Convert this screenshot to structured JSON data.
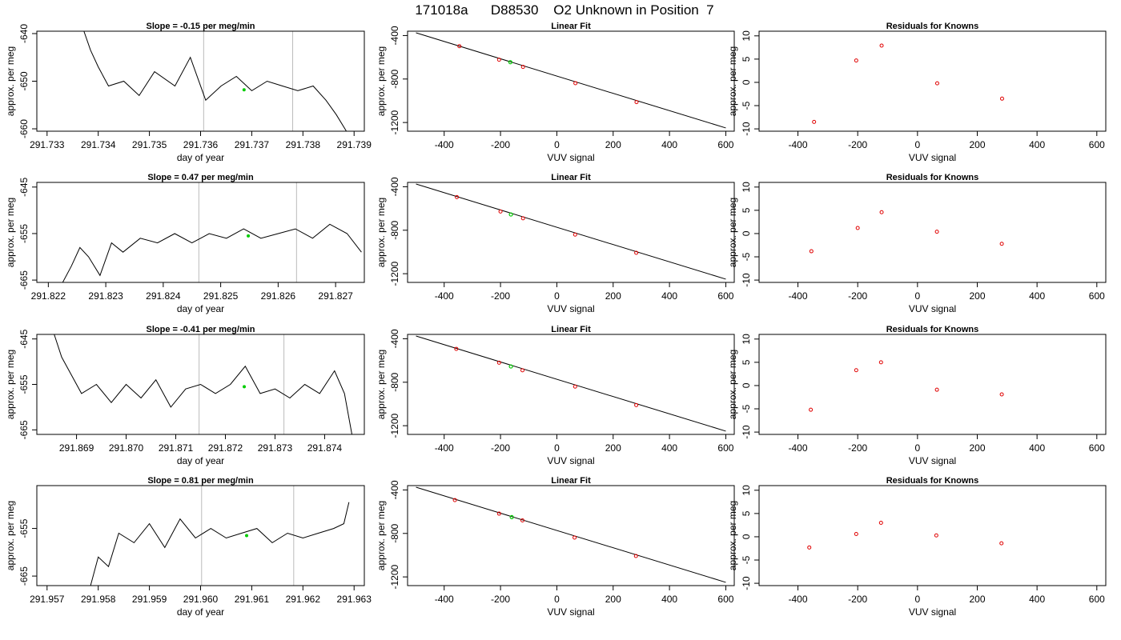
{
  "title": "171018a      D88530    O2 Unknown in Position  7",
  "colors": {
    "trace": "#000000",
    "marker": "#00cc00",
    "residual": "#e00000",
    "vline": "#bbbbbb",
    "fit": "#000000"
  },
  "rows": [
    {
      "ts_title": "Slope =  -0.15  per meg/min",
      "ts_xticks": [
        "291.733",
        "291.734",
        "291.735",
        "291.736",
        "291.737",
        "291.738",
        "291.739"
      ],
      "ts_yticks": [
        "-640",
        "-650",
        "-660"
      ],
      "ts_xlabel": "day of year",
      "ts_ylabel": "approx. per meg",
      "fit_title": "Linear Fit",
      "fit_xlabel": "VUV signal",
      "fit_ylabel": "approx. per meg",
      "res_title": "Residuals for Knowns",
      "res_xlabel": "VUV signal",
      "res_ylabel": "approx. per meg"
    },
    {
      "ts_title": "Slope =  0.47  per meg/min",
      "ts_xticks": [
        "291.822",
        "291.823",
        "291.824",
        "291.825",
        "291.826",
        "291.827"
      ],
      "ts_yticks": [
        "-645",
        "-655",
        "-665"
      ],
      "ts_xlabel": "day of year",
      "ts_ylabel": "approx. per meg",
      "fit_title": "Linear Fit",
      "fit_xlabel": "VUV signal",
      "fit_ylabel": "approx. per meg",
      "res_title": "Residuals for Knowns",
      "res_xlabel": "VUV signal",
      "res_ylabel": "approx. per meg"
    },
    {
      "ts_title": "Slope =  -0.41  per meg/min",
      "ts_xticks": [
        "291.869",
        "291.870",
        "291.871",
        "291.872",
        "291.873",
        "291.874"
      ],
      "ts_yticks": [
        "-645",
        "-655",
        "-665"
      ],
      "ts_xlabel": "day of year",
      "ts_ylabel": "approx. per meg",
      "fit_title": "Linear Fit",
      "fit_xlabel": "VUV signal",
      "fit_ylabel": "approx. per meg",
      "res_title": "Residuals for Knowns",
      "res_xlabel": "VUV signal",
      "res_ylabel": "approx. per meg"
    },
    {
      "ts_title": "Slope =  0.81  per meg/min",
      "ts_xticks": [
        "291.957",
        "291.958",
        "291.959",
        "291.960",
        "291.961",
        "291.962",
        "291.963"
      ],
      "ts_yticks": [
        "-655",
        "-665"
      ],
      "ts_xlabel": "day of year",
      "ts_ylabel": "approx. per meg",
      "fit_title": "Linear Fit",
      "fit_xlabel": "VUV signal",
      "fit_ylabel": "approx. per meg",
      "res_title": "Residuals for Knowns",
      "res_xlabel": "VUV signal",
      "res_ylabel": "approx. per meg"
    }
  ],
  "chart_data": [
    {
      "panel": "row1-timeseries",
      "type": "line",
      "title": "Slope =  -0.15  per meg/min",
      "xlabel": "day of year",
      "ylabel": "approx. per meg",
      "xlim": [
        291.7328,
        291.7392
      ],
      "ylim": [
        -660.5,
        -639.5
      ],
      "xticks": [
        291.733,
        291.734,
        291.735,
        291.736,
        291.737,
        291.738,
        291.739
      ],
      "yticks": [
        -640,
        -650,
        -660
      ],
      "vlines": [
        291.73606,
        291.7378
      ],
      "marker": {
        "x": 291.73685,
        "y": -651.8
      },
      "x": [
        291.73372,
        291.73385,
        291.734,
        291.7342,
        291.7345,
        291.7348,
        291.7351,
        291.7355,
        291.7358,
        291.7361,
        291.7364,
        291.7367,
        291.737,
        291.7373,
        291.7376,
        291.7379,
        291.7382,
        291.73845,
        291.73865,
        291.73885
      ],
      "y": [
        -639.5,
        -643.5,
        -647,
        -651,
        -650,
        -653,
        -648,
        -651,
        -645,
        -654,
        -651,
        -649,
        -652,
        -650,
        -651,
        -652,
        -651,
        -654,
        -657,
        -660.5
      ]
    },
    {
      "panel": "row1-linearfit",
      "type": "scatter",
      "title": "Linear Fit",
      "xlabel": "VUV signal",
      "ylabel": "approx. per meg",
      "xlim": [
        -530,
        630
      ],
      "ylim": [
        -1280,
        -360
      ],
      "xticks": [
        -400,
        -200,
        0,
        200,
        400,
        600
      ],
      "yticks": [
        -400,
        -800,
        -1200
      ],
      "x": [
        -346,
        -205,
        -120,
        66,
        283
      ],
      "y": [
        -498,
        -622,
        -688,
        -838,
        -1012
      ],
      "fit_line": {
        "x": [
          -500,
          600
        ],
        "y": [
          -375,
          -1250
        ]
      },
      "marker": {
        "x": -165,
        "y": -645
      }
    },
    {
      "panel": "row1-residuals",
      "type": "scatter",
      "title": "Residuals for Knowns",
      "xlabel": "VUV signal",
      "ylabel": "approx. per meg",
      "xlim": [
        -530,
        630
      ],
      "ylim": [
        -10.5,
        11
      ],
      "xticks": [
        -400,
        -200,
        0,
        200,
        400,
        600
      ],
      "yticks": [
        10,
        5,
        0,
        -5,
        -10
      ],
      "x": [
        -346,
        -205,
        -120,
        66,
        283
      ],
      "y": [
        -8.5,
        4.7,
        7.9,
        -0.2,
        -3.5
      ]
    },
    {
      "panel": "row2-timeseries",
      "type": "line",
      "title": "Slope =  0.47  per meg/min",
      "xlabel": "day of year",
      "ylabel": "approx. per meg",
      "xlim": [
        291.8218,
        291.8275
      ],
      "ylim": [
        -665.5,
        -644
      ],
      "xticks": [
        291.822,
        291.823,
        291.824,
        291.825,
        291.826,
        291.827
      ],
      "yticks": [
        -645,
        -655,
        -665
      ],
      "vlines": [
        291.82462,
        291.82632
      ],
      "marker": {
        "x": 291.82548,
        "y": -655.5
      },
      "x": [
        291.82225,
        291.8224,
        291.82255,
        291.8227,
        291.8229,
        291.8231,
        291.8233,
        291.8236,
        291.8239,
        291.8242,
        291.8245,
        291.8248,
        291.8251,
        291.8254,
        291.8257,
        291.826,
        291.8263,
        291.8266,
        291.8269,
        291.8272,
        291.82745
      ],
      "y": [
        -665.5,
        -662,
        -658,
        -660,
        -664,
        -657,
        -659,
        -656,
        -657,
        -655,
        -657,
        -655,
        -656,
        -654,
        -656,
        -655,
        -654,
        -656,
        -653,
        -655,
        -659
      ]
    },
    {
      "panel": "row2-linearfit",
      "type": "scatter",
      "title": "Linear Fit",
      "xlabel": "VUV signal",
      "ylabel": "approx. per meg",
      "xlim": [
        -530,
        630
      ],
      "ylim": [
        -1280,
        -360
      ],
      "xticks": [
        -400,
        -200,
        0,
        200,
        400,
        600
      ],
      "yticks": [
        -400,
        -800,
        -1200
      ],
      "x": [
        -355,
        -200,
        -120,
        65,
        282
      ],
      "y": [
        -495,
        -628,
        -690,
        -840,
        -1008
      ],
      "fit_line": {
        "x": [
          -500,
          600
        ],
        "y": [
          -375,
          -1250
        ]
      },
      "marker": {
        "x": -163,
        "y": -655
      }
    },
    {
      "panel": "row2-residuals",
      "type": "scatter",
      "title": "Residuals for Knowns",
      "xlabel": "VUV signal",
      "ylabel": "approx. per meg",
      "xlim": [
        -530,
        630
      ],
      "ylim": [
        -10.5,
        11
      ],
      "xticks": [
        -400,
        -200,
        0,
        200,
        400,
        600
      ],
      "yticks": [
        10,
        5,
        0,
        -5,
        -10
      ],
      "x": [
        -355,
        -200,
        -120,
        65,
        282
      ],
      "y": [
        -3.8,
        1.2,
        4.6,
        0.4,
        -2.2
      ]
    },
    {
      "panel": "row3-timeseries",
      "type": "line",
      "title": "Slope =  -0.41  per meg/min",
      "xlabel": "day of year",
      "ylabel": "approx. per meg",
      "xlim": [
        291.8682,
        291.8748
      ],
      "ylim": [
        -666,
        -644
      ],
      "xticks": [
        291.869,
        291.87,
        291.871,
        291.872,
        291.873,
        291.874
      ],
      "yticks": [
        -645,
        -655,
        -665
      ],
      "vlines": [
        291.87147,
        291.87318
      ],
      "marker": {
        "x": 291.87238,
        "y": -655.5
      },
      "x": [
        291.86855,
        291.8687,
        291.8689,
        291.8691,
        291.8694,
        291.8697,
        291.87,
        291.8703,
        291.8706,
        291.8709,
        291.8712,
        291.8715,
        291.8718,
        291.8721,
        291.8724,
        291.8727,
        291.873,
        291.8733,
        291.8736,
        291.8739,
        291.8742,
        291.8744,
        291.87455
      ],
      "y": [
        -644,
        -649,
        -653,
        -657,
        -655,
        -659,
        -655,
        -658,
        -654,
        -660,
        -656,
        -655,
        -657,
        -655,
        -651,
        -657,
        -656,
        -658,
        -655,
        -657,
        -652,
        -657,
        -666
      ]
    },
    {
      "panel": "row3-linearfit",
      "type": "scatter",
      "title": "Linear Fit",
      "xlabel": "VUV signal",
      "ylabel": "approx. per meg",
      "xlim": [
        -530,
        630
      ],
      "ylim": [
        -1280,
        -360
      ],
      "xticks": [
        -400,
        -200,
        0,
        200,
        400,
        600
      ],
      "yticks": [
        -400,
        -800,
        -1200
      ],
      "x": [
        -357,
        -205,
        -122,
        65,
        282
      ],
      "y": [
        -493,
        -620,
        -690,
        -840,
        -1010
      ],
      "fit_line": {
        "x": [
          -500,
          600
        ],
        "y": [
          -375,
          -1250
        ]
      },
      "marker": {
        "x": -163,
        "y": -655
      }
    },
    {
      "panel": "row3-residuals",
      "type": "scatter",
      "title": "Residuals for Knowns",
      "xlabel": "VUV signal",
      "ylabel": "approx. per meg",
      "xlim": [
        -530,
        630
      ],
      "ylim": [
        -10.5,
        11
      ],
      "xticks": [
        -400,
        -200,
        0,
        200,
        400,
        600
      ],
      "yticks": [
        10,
        5,
        0,
        -5,
        -10
      ],
      "x": [
        -357,
        -205,
        -122,
        65,
        282
      ],
      "y": [
        -5.2,
        3.3,
        5.0,
        -0.9,
        -1.9
      ]
    },
    {
      "panel": "row4-timeseries",
      "type": "line",
      "title": "Slope =  0.81  per meg/min",
      "xlabel": "day of year",
      "ylabel": "approx. per meg",
      "xlim": [
        291.9568,
        291.9632
      ],
      "ylim": [
        -667,
        -646
      ],
      "xticks": [
        291.957,
        291.958,
        291.959,
        291.96,
        291.961,
        291.962,
        291.963
      ],
      "yticks": [
        -655,
        -665
      ],
      "vlines": [
        291.96002,
        291.96182
      ],
      "marker": {
        "x": 291.9609,
        "y": -656.5
      },
      "x": [
        291.95785,
        291.958,
        291.9582,
        291.9584,
        291.9587,
        291.959,
        291.9593,
        291.9596,
        291.9599,
        291.9602,
        291.9605,
        291.9608,
        291.9611,
        291.9614,
        291.9617,
        291.962,
        291.9623,
        291.9626,
        291.9628,
        291.9629
      ],
      "y": [
        -667,
        -661,
        -663,
        -656,
        -658,
        -654,
        -659,
        -653,
        -657,
        -655,
        -657,
        -656,
        -655,
        -658,
        -656,
        -657,
        -656,
        -655,
        -654,
        -649.5
      ]
    },
    {
      "panel": "row4-linearfit",
      "type": "scatter",
      "title": "Linear Fit",
      "xlabel": "VUV signal",
      "ylabel": "approx. per meg",
      "xlim": [
        -530,
        630
      ],
      "ylim": [
        -1280,
        -360
      ],
      "xticks": [
        -400,
        -200,
        0,
        200,
        400,
        600
      ],
      "yticks": [
        -400,
        -800,
        -1200
      ],
      "x": [
        -362,
        -205,
        -122,
        63,
        281
      ],
      "y": [
        -493,
        -618,
        -680,
        -838,
        -1008
      ],
      "fit_line": {
        "x": [
          -500,
          600
        ],
        "y": [
          -375,
          -1250
        ]
      },
      "marker": {
        "x": -160,
        "y": -650
      }
    },
    {
      "panel": "row4-residuals",
      "type": "scatter",
      "title": "Residuals for Knowns",
      "xlabel": "VUV signal",
      "ylabel": "approx. per meg",
      "xlim": [
        -530,
        630
      ],
      "ylim": [
        -10.5,
        11
      ],
      "xticks": [
        -400,
        -200,
        0,
        200,
        400,
        600
      ],
      "yticks": [
        10,
        5,
        0,
        -5,
        -10
      ],
      "x": [
        -362,
        -205,
        -122,
        63,
        281
      ],
      "y": [
        -2.3,
        0.6,
        3.0,
        0.3,
        -1.4
      ]
    }
  ]
}
